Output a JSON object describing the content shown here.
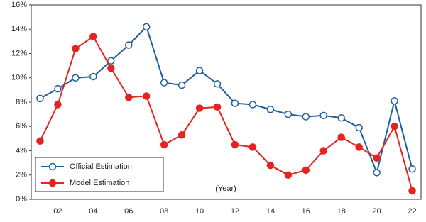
{
  "chart_data": {
    "type": "line",
    "x_label": "(Year)",
    "categories": [
      null,
      "02",
      null,
      "04",
      null,
      "06",
      null,
      "08",
      null,
      "10",
      null,
      "12",
      null,
      "14",
      null,
      "16",
      null,
      "18",
      null,
      "20",
      null,
      "22"
    ],
    "series": [
      {
        "name": "Official Estimation",
        "color": "#1f5f9e",
        "marker": "hollow",
        "values": [
          8.3,
          9.1,
          10.0,
          10.1,
          11.4,
          12.7,
          14.2,
          9.6,
          9.4,
          10.6,
          9.5,
          7.9,
          7.8,
          7.4,
          7.0,
          6.8,
          6.9,
          6.7,
          5.9,
          2.2,
          8.1,
          2.5
        ]
      },
      {
        "name": "Model Estimation",
        "color": "#e52421",
        "marker": "filled",
        "values": [
          4.8,
          7.8,
          12.4,
          13.4,
          10.8,
          8.4,
          8.5,
          4.5,
          5.3,
          7.5,
          7.6,
          4.5,
          4.3,
          2.8,
          2.0,
          2.4,
          4.0,
          5.1,
          4.3,
          3.4,
          6.0,
          0.7
        ]
      }
    ],
    "ylim": [
      0,
      16
    ],
    "yticks": [
      {
        "value": 0,
        "label": "0%"
      },
      {
        "value": 2,
        "label": "2%"
      },
      {
        "value": 4,
        "label": "4%"
      },
      {
        "value": 6,
        "label": "6%"
      },
      {
        "value": 8,
        "label": "8%"
      },
      {
        "value": 10,
        "label": "10%"
      },
      {
        "value": 12,
        "label": "12%"
      },
      {
        "value": 14,
        "label": "14%"
      },
      {
        "value": 16,
        "label": "16%"
      }
    ],
    "grid": false,
    "legend": "lower-left"
  }
}
